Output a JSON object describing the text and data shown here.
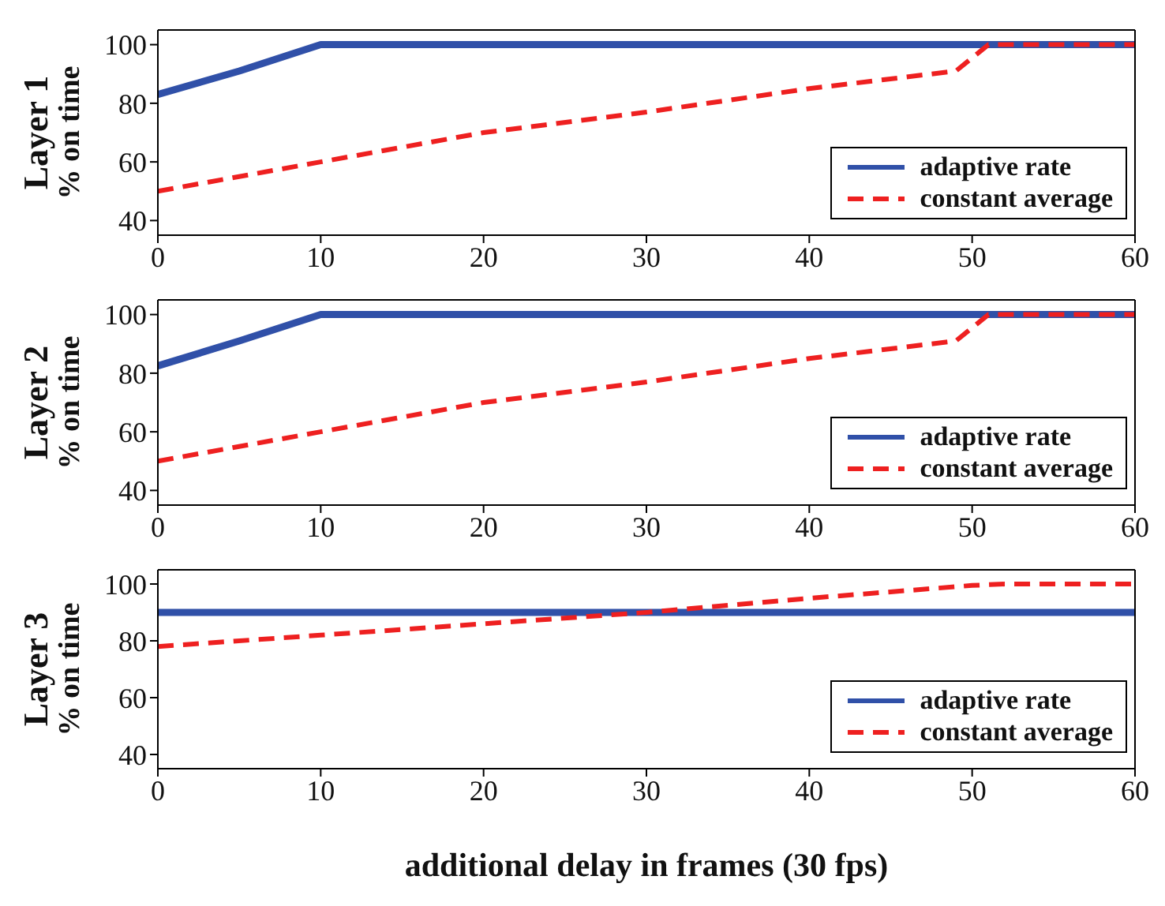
{
  "chart_data": [
    {
      "type": "line",
      "ylabel": "Layer 1\n% on time",
      "xlim": [
        0,
        60
      ],
      "xticks": [
        0,
        10,
        20,
        30,
        40,
        50,
        60
      ],
      "ylim": [
        35,
        105
      ],
      "yticks": [
        40,
        60,
        80,
        100
      ],
      "legend": "bottom right",
      "marker": "none",
      "series": [
        {
          "name": "adaptive rate",
          "color": "#3050a8",
          "line_style": "solid",
          "x": [
            0,
            5,
            10,
            60
          ],
          "values": [
            83,
            91,
            100,
            100
          ]
        },
        {
          "name": "constant average",
          "color": "#ee2020",
          "line_style": "dashed",
          "x": [
            0,
            10,
            20,
            30,
            40,
            49,
            51,
            60
          ],
          "values": [
            50,
            60,
            70,
            77,
            85,
            91,
            100,
            100
          ]
        }
      ]
    },
    {
      "type": "line",
      "ylabel": "Layer 2\n% on time",
      "xlim": [
        0,
        60
      ],
      "xticks": [
        0,
        10,
        20,
        30,
        40,
        50,
        60
      ],
      "ylim": [
        35,
        105
      ],
      "yticks": [
        40,
        60,
        80,
        100
      ],
      "legend": "bottom right",
      "marker": "none",
      "series": [
        {
          "name": "adaptive rate",
          "color": "#3050a8",
          "line_style": "solid",
          "x": [
            0,
            5,
            10,
            60
          ],
          "values": [
            82.5,
            91,
            100,
            100
          ]
        },
        {
          "name": "constant average",
          "color": "#ee2020",
          "line_style": "dashed",
          "x": [
            0,
            10,
            20,
            30,
            40,
            49,
            51,
            60
          ],
          "values": [
            50,
            60,
            70,
            77,
            85,
            91,
            100,
            100
          ]
        }
      ]
    },
    {
      "type": "line",
      "ylabel": "Layer 3\n% on time",
      "xlabel": "additional delay in frames (30 fps)",
      "xlim": [
        0,
        60
      ],
      "xticks": [
        0,
        10,
        20,
        30,
        40,
        50,
        60
      ],
      "ylim": [
        35,
        105
      ],
      "yticks": [
        40,
        60,
        80,
        100
      ],
      "legend": "bottom right",
      "marker": "none",
      "series": [
        {
          "name": "adaptive rate",
          "color": "#3050a8",
          "line_style": "solid",
          "x": [
            0,
            60
          ],
          "values": [
            90,
            90
          ]
        },
        {
          "name": "constant average",
          "color": "#ee2020",
          "line_style": "dashed",
          "x": [
            0,
            10,
            20,
            30,
            40,
            50,
            52,
            60
          ],
          "values": [
            78,
            82,
            86,
            90,
            95,
            99.5,
            100,
            100
          ]
        }
      ]
    }
  ]
}
